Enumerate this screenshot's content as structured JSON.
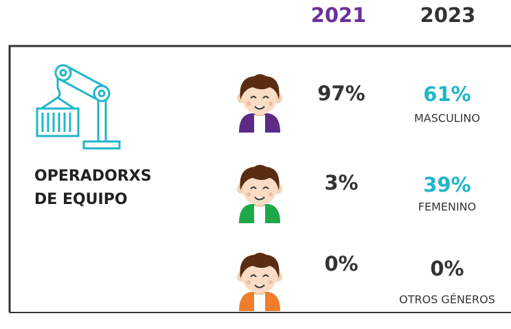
{
  "header": {
    "years": [
      "2021",
      "2023"
    ]
  },
  "group": {
    "label_lines": [
      "OPERADORXS",
      "DE EQUIPO"
    ]
  },
  "rows": [
    {
      "value_2021": "97%",
      "value_2023": "61%",
      "label": "MASCULINO"
    },
    {
      "value_2021": "3%",
      "value_2023": "39%",
      "label": "FEMENINO"
    },
    {
      "value_2021": "0%",
      "value_2023": "0%",
      "label": "OTROS GÉNEROS"
    }
  ]
}
